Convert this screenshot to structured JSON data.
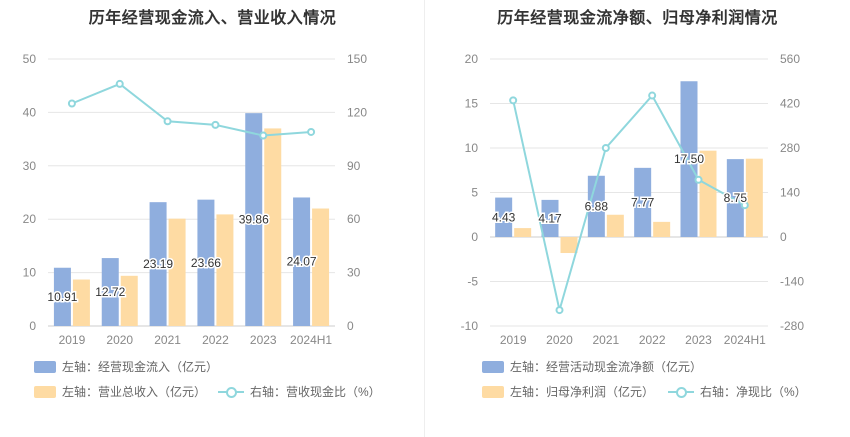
{
  "chart_data": [
    {
      "type": "bar",
      "title": "历年经营现金流入、营业收入情况",
      "categories": [
        "2019",
        "2020",
        "2021",
        "2022",
        "2023",
        "2024H1"
      ],
      "left_axis": {
        "ylim": [
          0,
          50
        ],
        "ticks": [
          "0",
          "10",
          "20",
          "30",
          "40",
          "50"
        ]
      },
      "right_axis": {
        "ylim": [
          0,
          150
        ],
        "ticks": [
          "0",
          "30",
          "60",
          "90",
          "120",
          "150"
        ]
      },
      "series": [
        {
          "name": "左轴：经营现金流入（亿元）",
          "kind": "bar",
          "axis": "left",
          "color": "#8faede",
          "values": [
            10.91,
            12.72,
            23.19,
            23.66,
            39.86,
            24.07
          ],
          "labels": [
            "10.91",
            "12.72",
            "23.19",
            "23.66",
            "39.86",
            "24.07"
          ]
        },
        {
          "name": "左轴：营业总收入（亿元）",
          "kind": "bar",
          "axis": "left",
          "color": "#fedba3",
          "values": [
            8.7,
            9.4,
            20.1,
            20.9,
            37.0,
            22.0
          ]
        },
        {
          "name": "右轴：营收现金比（%）",
          "kind": "line",
          "axis": "right",
          "color": "#8fd7dd",
          "values": [
            125,
            136,
            115,
            113,
            107,
            109
          ]
        }
      ],
      "grid": true,
      "legend_position": "bottom"
    },
    {
      "type": "bar",
      "title": "历年经营现金流净额、归母净利润情况",
      "categories": [
        "2019",
        "2020",
        "2021",
        "2022",
        "2023",
        "2024H1"
      ],
      "left_axis": {
        "ylim": [
          -10,
          20
        ],
        "ticks": [
          "-10",
          "-5",
          "0",
          "5",
          "10",
          "15",
          "20"
        ]
      },
      "right_axis": {
        "ylim": [
          -280,
          560
        ],
        "ticks": [
          "-280",
          "-140",
          "0",
          "140",
          "280",
          "420",
          "560"
        ]
      },
      "series": [
        {
          "name": "左轴：经营活动现金流净额（亿元）",
          "kind": "bar",
          "axis": "left",
          "color": "#8faede",
          "values": [
            4.43,
            4.17,
            6.88,
            7.77,
            17.5,
            8.75
          ],
          "labels": [
            "4.43",
            "4.17",
            "6.88",
            "7.77",
            "17.50",
            "8.75"
          ]
        },
        {
          "name": "左轴：归母净利润（亿元）",
          "kind": "bar",
          "axis": "left",
          "color": "#fedba3",
          "values": [
            1.0,
            -1.8,
            2.5,
            1.7,
            9.7,
            8.8
          ]
        },
        {
          "name": "右轴：净现比（%）",
          "kind": "line",
          "axis": "right",
          "color": "#8fd7dd",
          "values": [
            430,
            -230,
            280,
            445,
            180,
            100
          ]
        }
      ],
      "grid": true,
      "legend_position": "bottom"
    }
  ]
}
